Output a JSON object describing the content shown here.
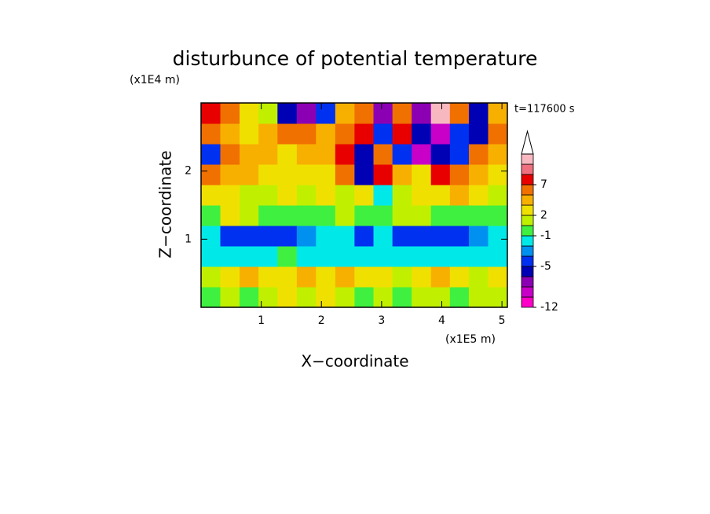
{
  "chart_data": {
    "type": "contour",
    "title": "disturbunce of potential temperature",
    "xlabel": "X−coordinate",
    "ylabel": "Z−coordinate",
    "xunit": "(x1E5 m)",
    "yunit": "(x1E4 m)",
    "annotation": "t=117600 s",
    "xlim": [
      0,
      5.09
    ],
    "ylim": [
      0,
      3
    ],
    "xticks": [
      1,
      2,
      3,
      4,
      5
    ],
    "yticks": [
      1,
      2
    ],
    "x": [
      0.16,
      0.48,
      0.8,
      1.11,
      1.43,
      1.75,
      2.07,
      2.39,
      2.71,
      3.02,
      3.34,
      3.66,
      3.98,
      4.29,
      4.61,
      4.93
    ],
    "y": [
      0.15,
      0.45,
      0.75,
      1.05,
      1.35,
      1.65,
      1.95,
      2.25,
      2.55,
      2.85
    ],
    "z": [
      [
        0,
        1,
        0,
        1,
        3,
        1,
        3,
        1,
        0,
        1,
        0,
        1,
        1,
        0,
        1,
        1
      ],
      [
        1,
        3,
        4.5,
        3,
        3,
        4.5,
        3,
        4.5,
        3,
        3,
        1,
        3,
        4.5,
        3,
        1,
        3
      ],
      [
        -2,
        -2,
        -2,
        -2,
        0,
        -2,
        -2,
        -2,
        -2,
        -2,
        -2,
        -2,
        -2,
        -2,
        -2,
        -2
      ],
      [
        -2,
        -4.5,
        -4.5,
        -4.5,
        -4.5,
        -3,
        -2,
        -2,
        -4.5,
        -2,
        -4.5,
        -4.5,
        -4.5,
        -4.5,
        -3,
        -2
      ],
      [
        0,
        3,
        1,
        0,
        0,
        0,
        0,
        1,
        0,
        0,
        1,
        1,
        0,
        0,
        0,
        0
      ],
      [
        3,
        3,
        1,
        1,
        3,
        1,
        3,
        1,
        3,
        -2,
        1,
        3,
        3,
        4.5,
        3,
        1
      ],
      [
        6,
        4.5,
        4.5,
        3,
        3,
        3,
        3,
        6,
        -6,
        8,
        4.5,
        3,
        8,
        6,
        4.5,
        3
      ],
      [
        -4.5,
        6,
        4.5,
        4.5,
        3,
        4.5,
        4.5,
        8,
        -6,
        6,
        -4.5,
        -9,
        -6,
        -4.5,
        6,
        4.5
      ],
      [
        6,
        4.5,
        3,
        4.5,
        6,
        6,
        4.5,
        6,
        8,
        -4.5,
        8,
        -6,
        -9,
        -4.5,
        -6,
        6
      ],
      [
        8,
        6,
        3,
        1,
        -6,
        -7.5,
        -4.5,
        4.5,
        6,
        -7.5,
        6,
        -7.5,
        11,
        6,
        -6,
        4.5
      ]
    ],
    "levels": [
      -12,
      null,
      null,
      null,
      -5,
      null,
      null,
      -1,
      null,
      2,
      null,
      null,
      7,
      null,
      null,
      null
    ],
    "colors": [
      "#ff00c8",
      "#c800c8",
      "#8c00b4",
      "#0000b4",
      "#0030f0",
      "#0090f0",
      "#00e8e8",
      "#40f040",
      "#c0f000",
      "#f0e000",
      "#f8b000",
      "#f07000",
      "#e80000",
      "#f07080",
      "#f8b8c0"
    ]
  }
}
